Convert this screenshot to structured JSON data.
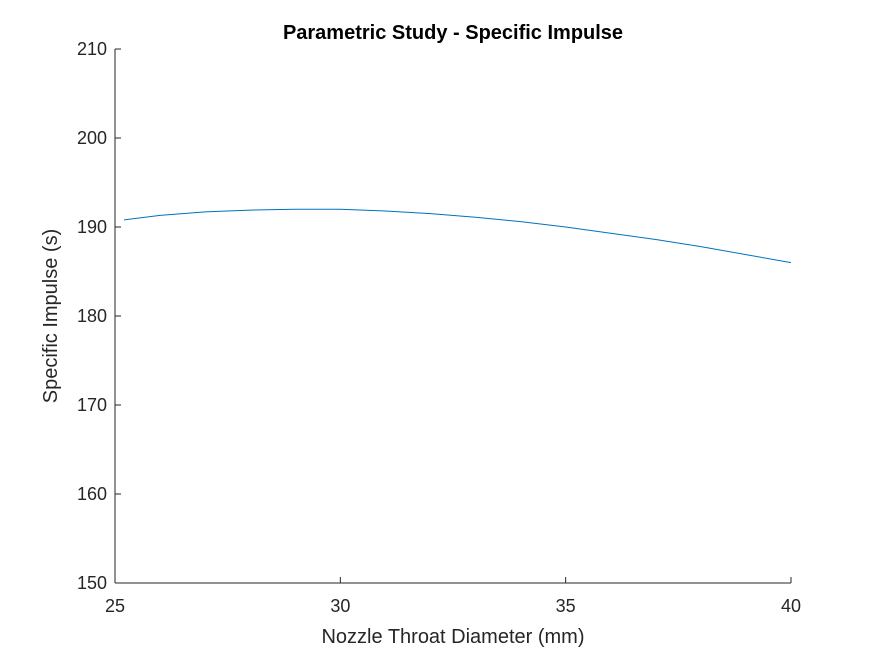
{
  "chart_data": {
    "type": "line",
    "title": "Parametric Study - Specific Impulse",
    "xlabel": "Nozzle Throat Diameter (mm)",
    "ylabel": "Specific Impulse (s)",
    "xlim": [
      25,
      40
    ],
    "ylim": [
      150,
      210
    ],
    "xticks": [
      25,
      30,
      35,
      40
    ],
    "yticks": [
      150,
      160,
      170,
      180,
      190,
      200,
      210
    ],
    "grid": false,
    "line_color": "#0072BD",
    "series": [
      {
        "x": [
          25.2,
          26,
          27,
          28,
          29,
          30,
          31,
          32,
          33,
          34,
          35,
          36,
          37,
          38,
          39,
          40
        ],
        "values": [
          190.8,
          191.3,
          191.7,
          191.9,
          192.0,
          192.0,
          191.8,
          191.5,
          191.1,
          190.6,
          190.0,
          189.3,
          188.6,
          187.8,
          186.9,
          186.0
        ]
      }
    ]
  }
}
